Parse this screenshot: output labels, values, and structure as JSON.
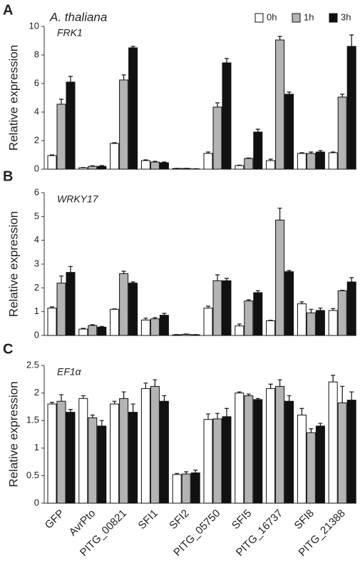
{
  "chart_data": [
    {
      "type": "bar",
      "panel_label": "A",
      "title": "A. thaliana",
      "subtitle": "FRK1",
      "ylabel": "Relative expression",
      "ylim": [
        0,
        10
      ],
      "yticks": [
        0,
        2,
        4,
        6,
        8,
        10
      ],
      "series": [
        {
          "name": "0h",
          "color": "#ffffff",
          "values": [
            0.95,
            0.1,
            1.8,
            0.6,
            0.05,
            1.1,
            0.25,
            0.6,
            1.1,
            1.15
          ],
          "errors": [
            0.05,
            0.02,
            0.05,
            0.05,
            0.01,
            0.1,
            0.03,
            0.1,
            0.05,
            0.05
          ]
        },
        {
          "name": "1h",
          "color": "#b3b3b3",
          "values": [
            4.55,
            0.2,
            6.25,
            0.5,
            0.05,
            4.35,
            0.75,
            9.05,
            1.1,
            5.05
          ],
          "errors": [
            0.35,
            0.03,
            0.35,
            0.05,
            0.01,
            0.3,
            0.03,
            0.25,
            0.1,
            0.2
          ]
        },
        {
          "name": "3h",
          "color": "#111111",
          "values": [
            6.1,
            0.2,
            8.5,
            0.45,
            0.02,
            7.45,
            2.6,
            5.25,
            1.2,
            8.6
          ],
          "errors": [
            0.4,
            0.05,
            0.1,
            0.05,
            0.01,
            0.3,
            0.2,
            0.15,
            0.1,
            0.8
          ]
        }
      ]
    },
    {
      "type": "bar",
      "panel_label": "B",
      "subtitle": "WRKY17",
      "ylabel": "Relative expression",
      "ylim": [
        0,
        6
      ],
      "yticks": [
        0,
        1,
        2,
        3,
        4,
        5,
        6
      ],
      "series": [
        {
          "color": "#ffffff",
          "values": [
            1.15,
            0.27,
            1.1,
            0.65,
            0.03,
            1.15,
            0.4,
            0.62,
            1.33,
            1.05
          ],
          "errors": [
            0.05,
            0.03,
            0.02,
            0.08,
            0.01,
            0.08,
            0.08,
            0.02,
            0.08,
            0.08
          ]
        },
        {
          "color": "#b3b3b3",
          "values": [
            2.2,
            0.42,
            2.6,
            0.7,
            0.05,
            2.3,
            1.45,
            4.85,
            0.95,
            1.88
          ],
          "errors": [
            0.3,
            0.03,
            0.1,
            0.05,
            0.01,
            0.25,
            0.05,
            0.5,
            0.15,
            0.02
          ]
        },
        {
          "color": "#111111",
          "values": [
            2.65,
            0.35,
            2.2,
            0.85,
            0.03,
            2.3,
            1.8,
            2.68,
            1.05,
            2.25
          ],
          "errors": [
            0.25,
            0.03,
            0.05,
            0.08,
            0.01,
            0.1,
            0.08,
            0.05,
            0.1,
            0.18
          ]
        }
      ]
    },
    {
      "type": "bar",
      "panel_label": "C",
      "subtitle": "EF1α",
      "ylabel": "Relative expression",
      "ylim": [
        0,
        2.5
      ],
      "yticks": [
        0,
        0.5,
        1,
        1.5,
        2,
        2.5
      ],
      "categories": [
        "GFP",
        "AvrPto",
        "PITG_00821",
        "SFI1",
        "SFI2",
        "PITG_05750",
        "SFI5",
        "PITG_16737",
        "SFI8",
        "PITG_21388"
      ],
      "series": [
        {
          "color": "#ffffff",
          "values": [
            1.8,
            1.9,
            1.8,
            2.08,
            0.52,
            1.52,
            2.0,
            2.08,
            1.6,
            2.2
          ],
          "errors": [
            0.03,
            0.05,
            0.05,
            0.1,
            0.02,
            0.1,
            0.02,
            0.08,
            0.12,
            0.12
          ]
        },
        {
          "color": "#b3b3b3",
          "values": [
            1.85,
            1.55,
            1.9,
            2.12,
            0.53,
            1.53,
            1.95,
            2.12,
            1.28,
            1.82
          ],
          "errors": [
            0.12,
            0.05,
            0.12,
            0.12,
            0.04,
            0.1,
            0.03,
            0.12,
            0.07,
            0.3
          ]
        },
        {
          "color": "#111111",
          "values": [
            1.65,
            1.4,
            1.65,
            1.85,
            0.55,
            1.57,
            1.88,
            1.85,
            1.4,
            1.87
          ],
          "errors": [
            0.05,
            0.1,
            0.15,
            0.1,
            0.05,
            0.15,
            0.02,
            0.1,
            0.05,
            0.15
          ]
        }
      ]
    }
  ]
}
